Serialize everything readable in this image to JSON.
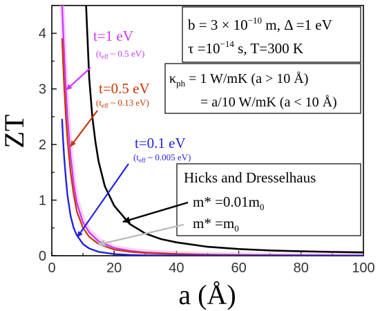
{
  "chart_data": {
    "type": "line",
    "xlabel": "a (Å)",
    "ylabel": "ZT",
    "xlim": [
      0,
      100
    ],
    "ylim": [
      0,
      4.5
    ],
    "x_ticks": [
      "0",
      "20",
      "40",
      "60",
      "80",
      "100"
    ],
    "y_ticks": [
      "0",
      "1",
      "2",
      "3",
      "4"
    ],
    "grid": false,
    "series": [
      {
        "name": "t=1 eV",
        "color": "#cc33ff",
        "x": [
          3.3,
          3.6,
          4,
          4.5,
          5,
          6,
          7,
          8,
          10,
          12,
          15,
          20,
          25,
          30,
          40,
          50,
          60,
          80,
          100
        ],
        "y": [
          4.5,
          4.1,
          3.6,
          3.0,
          2.5,
          1.8,
          1.3,
          0.95,
          0.6,
          0.42,
          0.26,
          0.14,
          0.09,
          0.06,
          0.035,
          0.02,
          0.015,
          0.008,
          0.005
        ]
      },
      {
        "name": "t=0.5 eV",
        "color": "#cc3300",
        "x": [
          3.3,
          3.6,
          4,
          4.5,
          5,
          6,
          7,
          8,
          10,
          12,
          15,
          20,
          25,
          30,
          40,
          50,
          60,
          80,
          100
        ],
        "y": [
          3.9,
          3.5,
          3.0,
          2.5,
          2.1,
          1.5,
          1.1,
          0.8,
          0.5,
          0.34,
          0.21,
          0.11,
          0.07,
          0.05,
          0.028,
          0.018,
          0.012,
          0.006,
          0.004
        ]
      },
      {
        "name": "t=0.1 eV",
        "color": "#2222dd",
        "x": [
          3.3,
          3.6,
          4,
          4.5,
          5,
          6,
          7,
          8,
          10,
          12,
          15,
          20,
          25,
          30,
          40,
          50,
          60,
          80,
          100
        ],
        "y": [
          2.45,
          2.1,
          1.75,
          1.4,
          1.1,
          0.72,
          0.5,
          0.37,
          0.21,
          0.13,
          0.07,
          0.03,
          0.015,
          0.008,
          0.004,
          0.002,
          0.001,
          0.0005,
          0.0003
        ]
      },
      {
        "name": "m* =0.01m0",
        "color": "#000000",
        "x": [
          11,
          12,
          13,
          14,
          15,
          17,
          20,
          25,
          30,
          35,
          40,
          50,
          60,
          70,
          80,
          90,
          100
        ],
        "y": [
          4.5,
          3.2,
          2.5,
          2.05,
          1.7,
          1.25,
          0.9,
          0.57,
          0.4,
          0.3,
          0.24,
          0.16,
          0.12,
          0.095,
          0.08,
          0.068,
          0.06
        ]
      },
      {
        "name": "m* =m0",
        "color": "#f0b0f0",
        "x": [
          3.3,
          3.6,
          4,
          4.5,
          5,
          6,
          7,
          8,
          10,
          12,
          15,
          20,
          25,
          30,
          40,
          50,
          60,
          80,
          100
        ],
        "y": [
          4.5,
          4.2,
          3.7,
          3.1,
          2.6,
          1.9,
          1.38,
          1.0,
          0.64,
          0.45,
          0.28,
          0.15,
          0.1,
          0.07,
          0.04,
          0.025,
          0.018,
          0.01,
          0.006
        ]
      }
    ],
    "annotations": {
      "t1": {
        "label": "t=1 eV",
        "teff": "(t",
        "teff_sub": "eff",
        "teff_rest": " ~ 0.5 eV)",
        "color": "#cc33ff"
      },
      "t05": {
        "label": "t=0.5 eV",
        "teff": "(t",
        "teff_sub": "eff",
        "teff_rest": " ~ 0.13 eV)",
        "color": "#cc3300"
      },
      "t01": {
        "label": "t=0.1 eV",
        "teff": "(t",
        "teff_sub": "eff",
        "teff_rest": " ~ 0.005 eV)",
        "color": "#2222dd"
      }
    },
    "params_box": {
      "line1_a": "b = 3 × 10",
      "line1_sup": "−10",
      "line1_b": " m, Δ =1 eV",
      "line2_a": "τ =10",
      "line2_sup": "−14",
      "line2_b": " s, T=300 K"
    },
    "kappa_box": {
      "line1_sym": "κ",
      "line1_sub": "ph",
      "line1_rest": " = 1 W/mK (a > 10 Å)",
      "line2": "= a/10 W/mK (a < 10 Å)"
    },
    "hd_box": {
      "title": "Hicks and Dresselhaus",
      "item1_a": "m* =0.01m",
      "item1_sub": "0",
      "item2_a": "m* =m",
      "item2_sub": "0"
    }
  }
}
